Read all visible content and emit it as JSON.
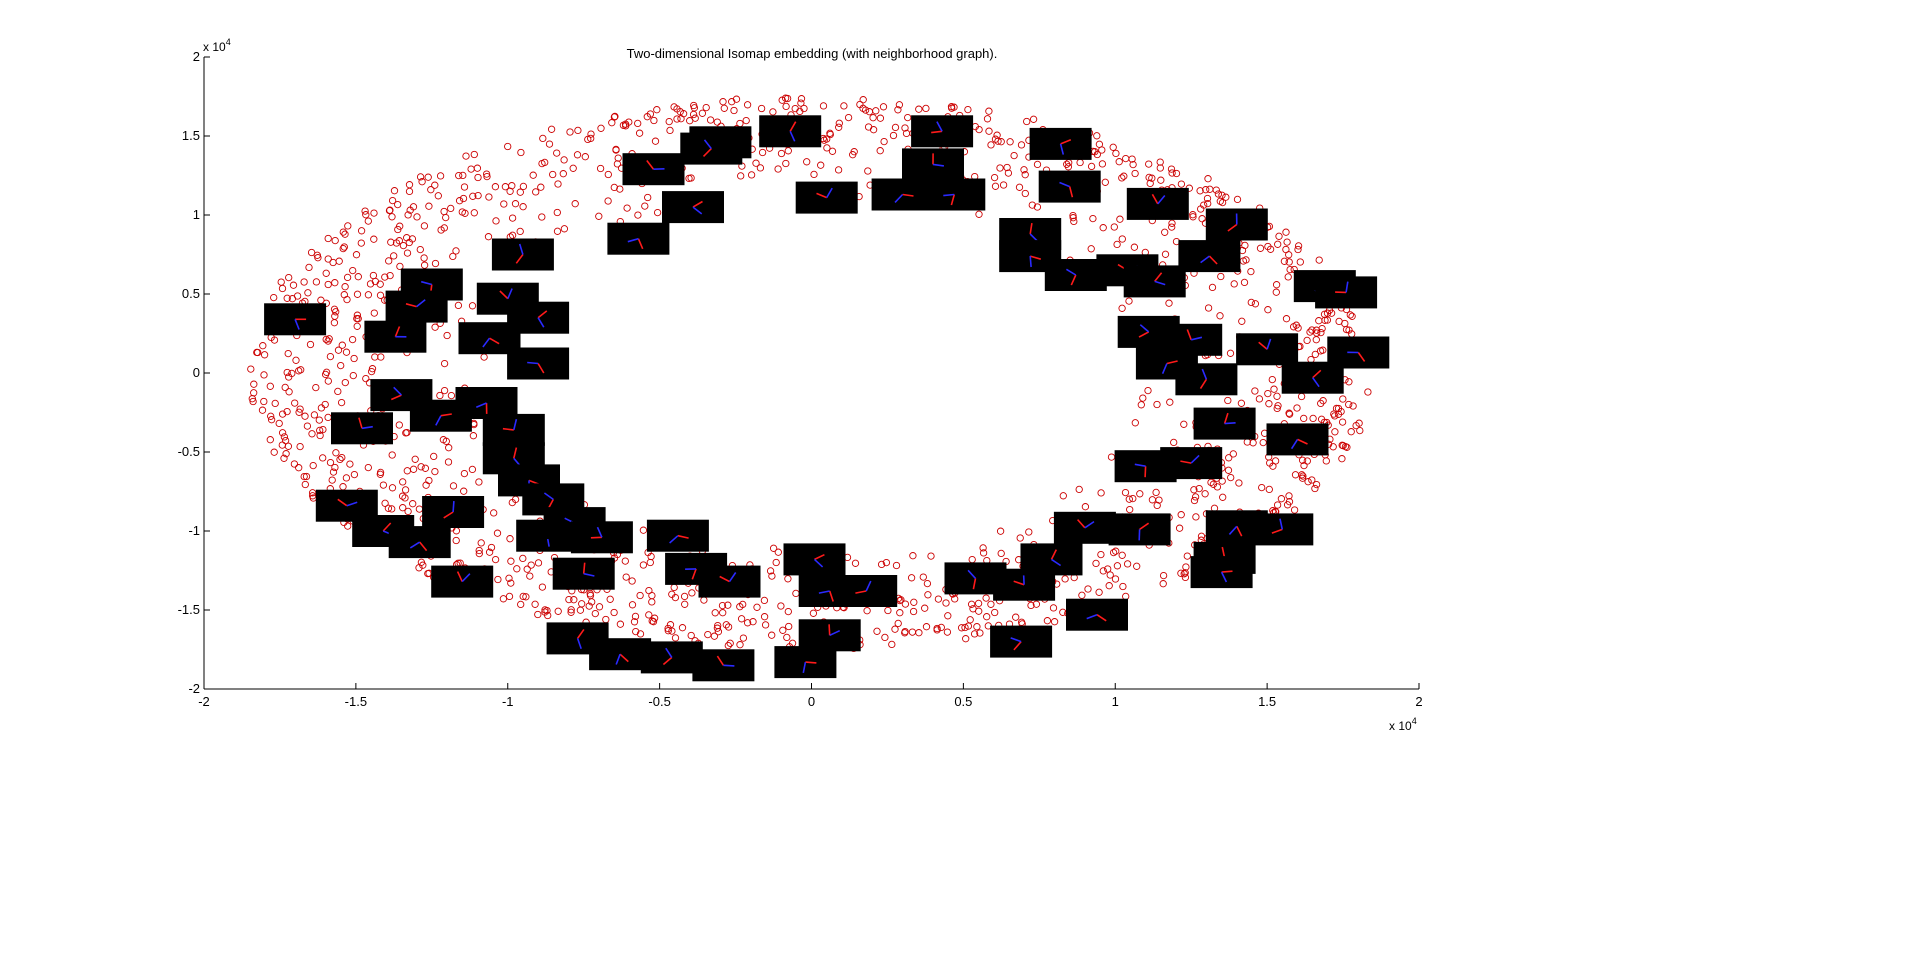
{
  "colors": {
    "background": "#ffffff",
    "axis": "#000000",
    "points": "#cc0000",
    "thumb_bg": "#000000",
    "thumb_red": "#ff1a1a",
    "thumb_blue": "#2a2aff"
  },
  "chart_data": {
    "type": "scatter",
    "title": "Two-dimensional Isomap embedding (with neighborhood graph).",
    "xlabel": "",
    "ylabel": "",
    "xlim": [
      -20000,
      20000
    ],
    "ylim": [
      -20000,
      20000
    ],
    "x_exponent_label": "x 10",
    "x_exponent_power": "4",
    "y_exponent_label": "x 10",
    "y_exponent_power": "4",
    "x_ticks": [
      -20000,
      -15000,
      -10000,
      -5000,
      0,
      5000,
      10000,
      15000,
      20000
    ],
    "x_tick_labels": [
      "-2",
      "-1.5",
      "-1",
      "-0.5",
      "0",
      "0.5",
      "1",
      "1.5",
      "2"
    ],
    "y_ticks": [
      -20000,
      -15000,
      -10000,
      -5000,
      0,
      5000,
      10000,
      15000,
      20000
    ],
    "y_tick_labels": [
      "-2",
      "-1.5",
      "-1",
      "-0.5",
      "0",
      "0.5",
      "1",
      "1.5",
      "2"
    ],
    "grid": false,
    "marker": "o",
    "point_cloud": {
      "shape": "elliptical annulus",
      "center": [
        0,
        0
      ],
      "outer_radius_x": 18500,
      "outer_radius_y": 17500,
      "inner_radius_x": 10500,
      "inner_radius_y": 11000,
      "approx_count": 1500
    },
    "image_thumbnails": [
      {
        "x": -17000,
        "y": 3400
      },
      {
        "x": -12500,
        "y": 5600
      },
      {
        "x": -13000,
        "y": 4200
      },
      {
        "x": -13700,
        "y": 2300
      },
      {
        "x": -10600,
        "y": 2200
      },
      {
        "x": -9500,
        "y": 7500
      },
      {
        "x": -10000,
        "y": 4700
      },
      {
        "x": -9000,
        "y": 3500
      },
      {
        "x": -9000,
        "y": 600
      },
      {
        "x": -13500,
        "y": -1400
      },
      {
        "x": -14800,
        "y": -3500
      },
      {
        "x": -12200,
        "y": -2700
      },
      {
        "x": -10700,
        "y": -1900
      },
      {
        "x": -9800,
        "y": -3600
      },
      {
        "x": -9800,
        "y": -5400
      },
      {
        "x": -9300,
        "y": -6800
      },
      {
        "x": -8500,
        "y": -8000
      },
      {
        "x": -15300,
        "y": -8400
      },
      {
        "x": -14100,
        "y": -10000
      },
      {
        "x": -12900,
        "y": -10700
      },
      {
        "x": -11800,
        "y": -8800
      },
      {
        "x": -11500,
        "y": -13200
      },
      {
        "x": -8700,
        "y": -10300
      },
      {
        "x": -7800,
        "y": -9500
      },
      {
        "x": -6900,
        "y": -10400
      },
      {
        "x": -7500,
        "y": -12700
      },
      {
        "x": -4400,
        "y": -10300
      },
      {
        "x": -3800,
        "y": -12400
      },
      {
        "x": -2700,
        "y": -13200
      },
      {
        "x": -7700,
        "y": -16800
      },
      {
        "x": -6300,
        "y": -17800
      },
      {
        "x": -4600,
        "y": -18000
      },
      {
        "x": -2900,
        "y": -18500
      },
      {
        "x": 100,
        "y": -11800
      },
      {
        "x": 600,
        "y": -13800
      },
      {
        "x": 1800,
        "y": -13800
      },
      {
        "x": 600,
        "y": -16600
      },
      {
        "x": -200,
        "y": -18300
      },
      {
        "x": 5400,
        "y": -13000
      },
      {
        "x": 7000,
        "y": -13400
      },
      {
        "x": 7900,
        "y": -11800
      },
      {
        "x": 9400,
        "y": -15300
      },
      {
        "x": 6900,
        "y": -17000
      },
      {
        "x": 9000,
        "y": -9800
      },
      {
        "x": 10800,
        "y": -9900
      },
      {
        "x": 14000,
        "y": -9700
      },
      {
        "x": 15500,
        "y": -9900
      },
      {
        "x": 13600,
        "y": -11700
      },
      {
        "x": 13500,
        "y": -12600
      },
      {
        "x": 11000,
        "y": -5900
      },
      {
        "x": 12500,
        "y": -5700
      },
      {
        "x": 13600,
        "y": -3200
      },
      {
        "x": 16000,
        "y": -4200
      },
      {
        "x": 13000,
        "y": -400
      },
      {
        "x": 15000,
        "y": 1500
      },
      {
        "x": 16500,
        "y": -300
      },
      {
        "x": 18000,
        "y": 1300
      },
      {
        "x": 11100,
        "y": 2600
      },
      {
        "x": 12500,
        "y": 2100
      },
      {
        "x": 11700,
        "y": 600
      },
      {
        "x": 16900,
        "y": 5500
      },
      {
        "x": 17600,
        "y": 5100
      },
      {
        "x": 7200,
        "y": 8800
      },
      {
        "x": 7200,
        "y": 7400
      },
      {
        "x": 8700,
        "y": 6200
      },
      {
        "x": 10400,
        "y": 6500
      },
      {
        "x": 11300,
        "y": 5800
      },
      {
        "x": 13100,
        "y": 7400
      },
      {
        "x": 14000,
        "y": 9400
      },
      {
        "x": 11400,
        "y": 10700
      },
      {
        "x": 8200,
        "y": 14500
      },
      {
        "x": 8500,
        "y": 11800
      },
      {
        "x": 4300,
        "y": 15300
      },
      {
        "x": 4000,
        "y": 13200
      },
      {
        "x": 3000,
        "y": 11300
      },
      {
        "x": 4700,
        "y": 11300
      },
      {
        "x": 500,
        "y": 11100
      },
      {
        "x": -700,
        "y": 15300
      },
      {
        "x": -3000,
        "y": 14600
      },
      {
        "x": -3300,
        "y": 14200
      },
      {
        "x": -5200,
        "y": 12900
      },
      {
        "x": -3900,
        "y": 10500
      },
      {
        "x": -5700,
        "y": 8500
      }
    ]
  }
}
